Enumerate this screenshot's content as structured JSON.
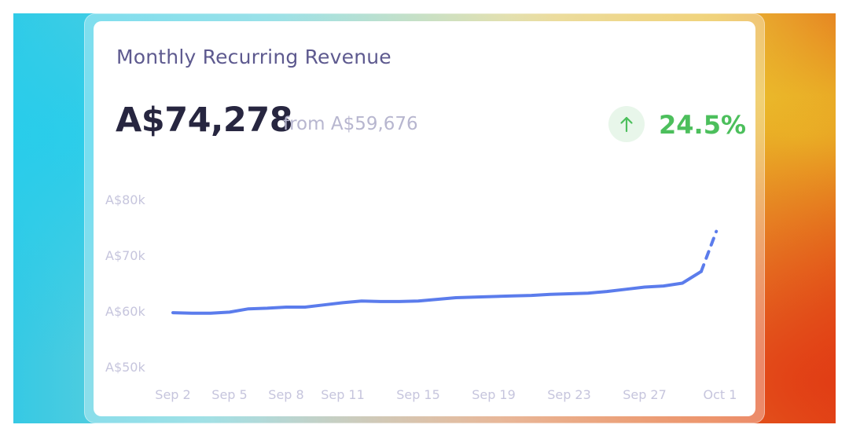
{
  "card": {
    "title": "Monthly Recurring Revenue",
    "value": "A$74,278",
    "from_text": "from A$59,676",
    "change_percent": "24.5%",
    "change_direction_icon": "arrow-up-icon",
    "colors": {
      "title": "#5e5a8f",
      "value": "#272640",
      "muted": "#b7b6cf",
      "positive": "#4cbf5c",
      "positive_bg": "#e8f6ea",
      "line": "#5b7cec"
    }
  },
  "chart_data": {
    "type": "line",
    "title": "",
    "xlabel": "",
    "ylabel": "",
    "ylim": [
      50000,
      80000
    ],
    "y_ticks": [
      {
        "value": 80000,
        "label": "A$80k"
      },
      {
        "value": 70000,
        "label": "A$70k"
      },
      {
        "value": 60000,
        "label": "A$60k"
      },
      {
        "value": 50000,
        "label": "A$50k"
      }
    ],
    "x_range": [
      2,
      31
    ],
    "x_ticks": [
      {
        "day": 2,
        "label": "Sep 2"
      },
      {
        "day": 5,
        "label": "Sep 5"
      },
      {
        "day": 8,
        "label": "Sep 8"
      },
      {
        "day": 11,
        "label": "Sep 11"
      },
      {
        "day": 15,
        "label": "Sep 15"
      },
      {
        "day": 19,
        "label": "Sep 19"
      },
      {
        "day": 23,
        "label": "Sep 23"
      },
      {
        "day": 27,
        "label": "Sep 27"
      },
      {
        "day": 31,
        "label": "Oct 1"
      }
    ],
    "grid": false,
    "legend": "none",
    "series": [
      {
        "style": "solid",
        "points": [
          [
            2,
            59700
          ],
          [
            3,
            59600
          ],
          [
            4,
            59600
          ],
          [
            5,
            59800
          ],
          [
            6,
            60400
          ],
          [
            7,
            60500
          ],
          [
            8,
            60700
          ],
          [
            9,
            60700
          ],
          [
            10,
            61100
          ],
          [
            11,
            61500
          ],
          [
            12,
            61800
          ],
          [
            13,
            61700
          ],
          [
            14,
            61700
          ],
          [
            15,
            61800
          ],
          [
            16,
            62100
          ],
          [
            17,
            62400
          ],
          [
            18,
            62500
          ],
          [
            19,
            62600
          ],
          [
            20,
            62700
          ],
          [
            21,
            62800
          ],
          [
            22,
            63000
          ],
          [
            23,
            63100
          ],
          [
            24,
            63200
          ],
          [
            25,
            63500
          ],
          [
            26,
            63900
          ],
          [
            27,
            64300
          ],
          [
            28,
            64500
          ],
          [
            29,
            65000
          ],
          [
            30,
            67100
          ]
        ]
      },
      {
        "style": "dashed",
        "points": [
          [
            30,
            67100
          ],
          [
            30.8,
            74278
          ]
        ]
      }
    ]
  }
}
